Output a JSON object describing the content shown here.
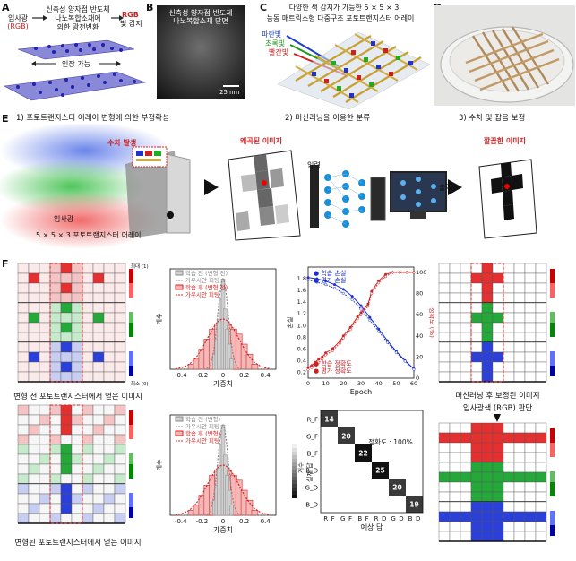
{
  "panel_labels": {
    "a": "A",
    "b": "B",
    "c": "C",
    "d": "D",
    "e": "E",
    "f": "F"
  },
  "panelA": {
    "incident": "입사광",
    "rgb": "(RGB)",
    "material_line1": "신축성 양자점 반도체",
    "material_line2": "나노복합소재에",
    "material_line3": "의한 광전변환",
    "output_rgb": "RGB",
    "output_text": "빛 감지",
    "stretch": "인장 가능"
  },
  "panelB": {
    "title1": "신축성 양자점 반도체",
    "title2": "나노복합소재 단면",
    "scale": "25 nm"
  },
  "panelC": {
    "title1": "다양한 색 감지가 가능한 5 × 5 × 3",
    "title2": "능동 매트릭스형 다중구조 포토트랜지스터 어레이",
    "blue": "파란빛",
    "green": "초록빛",
    "red": "빨간빛"
  },
  "panelE": {
    "step1": "1) 포토트랜지스터 어레이 변형에 의한 부정확성",
    "step2": "2) 머신러닝을 이용한 분류",
    "step3": "3) 수차 및 잡음 보정",
    "aberration": "수차 발생",
    "distorted": "왜곡된 이미지",
    "incident": "입사광",
    "array": "5 × 5 × 3 포토트랜지스터 어레이",
    "input": "입력",
    "output": "출력",
    "clean": "깔끔한 이미지"
  },
  "panelF": {
    "max": "최대 (1)",
    "min": "최소 (0)",
    "img_before": "변형 전 포토트랜지스터에서 얻은 이미지",
    "img_after": "변형된 포토트랜지스터에서 얻은 이미지",
    "img_corrected": "머신러닝 후 보정된 이미지",
    "judge": "입사광색 (RGB) 판단",
    "hist1": {
      "legend": [
        "학습 전 (변형 전)",
        "가우시안 피팅",
        "학습 후 (변형 전)",
        "가우시안 피팅"
      ],
      "xlabel": "가중치",
      "ylabel": "개수",
      "xticks": [
        "-0.4",
        "-0.2",
        "0",
        "0.2",
        "0.4"
      ]
    },
    "hist2": {
      "legend": [
        "학습 전 (변형)",
        "가우시안 피팅",
        "학습 후 (변형)",
        "가우시안 피팅"
      ],
      "xlabel": "가중치",
      "ylabel": "개수",
      "xticks": [
        "-0.4",
        "-0.2",
        "0",
        "0.2",
        "0.4"
      ]
    },
    "curve": {
      "legend_top": [
        "학습 손실",
        "평가 손실"
      ],
      "legend_bottom": [
        "학습 정확도",
        "평가 정확도"
      ],
      "xlabel": "Epoch",
      "ylabel_left": "손실",
      "ylabel_right": "정확도 (%)",
      "xticks": [
        "0",
        "10",
        "20",
        "30",
        "40",
        "50",
        "60"
      ],
      "yticks_left": [
        "0.2",
        "0.4",
        "0.6",
        "0.8",
        "1.0",
        "1.2",
        "1.4",
        "1.6",
        "1.8"
      ],
      "yticks_right": [
        "0",
        "20",
        "40",
        "60",
        "80",
        "100"
      ]
    },
    "confusion": {
      "labels": [
        "R_F",
        "G_F",
        "B_F",
        "R_D",
        "G_D",
        "B_D"
      ],
      "diag": [
        14,
        20,
        22,
        25,
        20,
        19
      ],
      "accuracy": "정확도 : 100%",
      "xlabel": "예상 답",
      "ylabel": "실제 답",
      "cbar": "개수"
    }
  },
  "chart_data": [
    {
      "type": "line",
      "title": "",
      "xlabel": "Epoch",
      "ylabel": "손실",
      "xlim": [
        0,
        60
      ],
      "ylim": [
        0.1,
        2.0
      ],
      "series": [
        {
          "name": "학습 손실",
          "x": [
            0,
            5,
            10,
            15,
            20,
            25,
            30,
            35,
            40,
            45,
            50,
            55,
            60
          ],
          "y": [
            1.82,
            1.8,
            1.76,
            1.7,
            1.62,
            1.5,
            1.34,
            1.14,
            0.94,
            0.74,
            0.56,
            0.4,
            0.26
          ]
        },
        {
          "name": "평가 손실",
          "x": [
            0,
            5,
            10,
            15,
            20,
            25,
            30,
            35,
            40,
            45,
            50,
            55,
            60
          ],
          "y": [
            1.78,
            1.74,
            1.7,
            1.64,
            1.55,
            1.44,
            1.28,
            1.09,
            0.9,
            0.71,
            0.54,
            0.39,
            0.25
          ]
        },
        {
          "name": "학습 정확도",
          "x": [
            0,
            2,
            4,
            6,
            8,
            10,
            14,
            18,
            20,
            24,
            28,
            30,
            34,
            36,
            40,
            44,
            48,
            52,
            56,
            60
          ],
          "y": [
            10,
            12,
            15,
            18,
            20,
            24,
            28,
            35,
            40,
            48,
            58,
            62,
            70,
            82,
            92,
            98,
            100,
            100,
            100,
            100
          ]
        },
        {
          "name": "평가 정확도",
          "x": [
            0,
            2,
            4,
            6,
            8,
            10,
            14,
            18,
            20,
            24,
            28,
            30,
            34,
            36,
            40,
            44,
            48,
            52,
            56,
            60
          ],
          "y": [
            8,
            10,
            12,
            15,
            18,
            22,
            26,
            33,
            38,
            46,
            56,
            60,
            68,
            80,
            90,
            96,
            100,
            100,
            100,
            100
          ]
        }
      ]
    },
    {
      "type": "heatmap",
      "title": "",
      "xlabel": "예상 답",
      "ylabel": "실제 답",
      "categories": [
        "R_F",
        "G_F",
        "B_F",
        "R_D",
        "G_D",
        "B_D"
      ],
      "values": [
        [
          14,
          0,
          0,
          0,
          0,
          0
        ],
        [
          0,
          20,
          0,
          0,
          0,
          0
        ],
        [
          0,
          0,
          22,
          0,
          0,
          0
        ],
        [
          0,
          0,
          0,
          25,
          0,
          0
        ],
        [
          0,
          0,
          0,
          0,
          20,
          0
        ],
        [
          0,
          0,
          0,
          0,
          0,
          19
        ]
      ]
    },
    {
      "type": "bar",
      "title": "",
      "xlabel": "가중치",
      "ylabel": "개수",
      "series": [
        {
          "name": "학습 전 (변형 전)",
          "x": [
            -0.08,
            -0.06,
            -0.04,
            -0.02,
            0,
            0.02,
            0.04,
            0.06,
            0.08
          ],
          "values": [
            3,
            6,
            10,
            14,
            18,
            12,
            8,
            5,
            2
          ]
        },
        {
          "name": "학습 후 (변형 전)",
          "x": [
            -0.3,
            -0.25,
            -0.2,
            -0.15,
            -0.1,
            -0.05,
            0,
            0.05,
            0.1,
            0.15,
            0.2,
            0.25,
            0.3
          ],
          "values": [
            1,
            2,
            4,
            6,
            8,
            9,
            10,
            9,
            8,
            7,
            5,
            3,
            1
          ]
        }
      ]
    },
    {
      "type": "bar",
      "title": "",
      "xlabel": "가중치",
      "ylabel": "개수",
      "series": [
        {
          "name": "학습 전 (변형)",
          "x": [
            -0.08,
            -0.06,
            -0.04,
            -0.02,
            0,
            0.02,
            0.04,
            0.06,
            0.08
          ],
          "values": [
            3,
            6,
            10,
            14,
            18,
            12,
            8,
            5,
            2
          ]
        },
        {
          "name": "학습 후 (변형)",
          "x": [
            -0.3,
            -0.25,
            -0.2,
            -0.15,
            -0.1,
            -0.05,
            0,
            0.05,
            0.1,
            0.15,
            0.2,
            0.25,
            0.3
          ],
          "values": [
            1,
            2,
            4,
            6,
            8,
            9,
            10,
            9,
            8,
            7,
            5,
            3,
            1
          ]
        }
      ]
    }
  ]
}
